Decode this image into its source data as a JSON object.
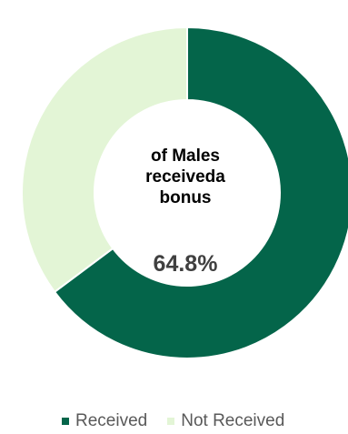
{
  "chart_data": {
    "type": "pie",
    "variant": "donut",
    "center_text_lines": [
      "of Males",
      "receiveda",
      "bonus"
    ],
    "center_value": "64.8%",
    "series": [
      {
        "name": "Received",
        "value": 64.8,
        "color": "#04654a"
      },
      {
        "name": "Not Received",
        "value": 35.2,
        "color": "#e3f5d6"
      }
    ],
    "legend_placement": "bottom",
    "start_angle": "top",
    "direction": "clockwise"
  }
}
